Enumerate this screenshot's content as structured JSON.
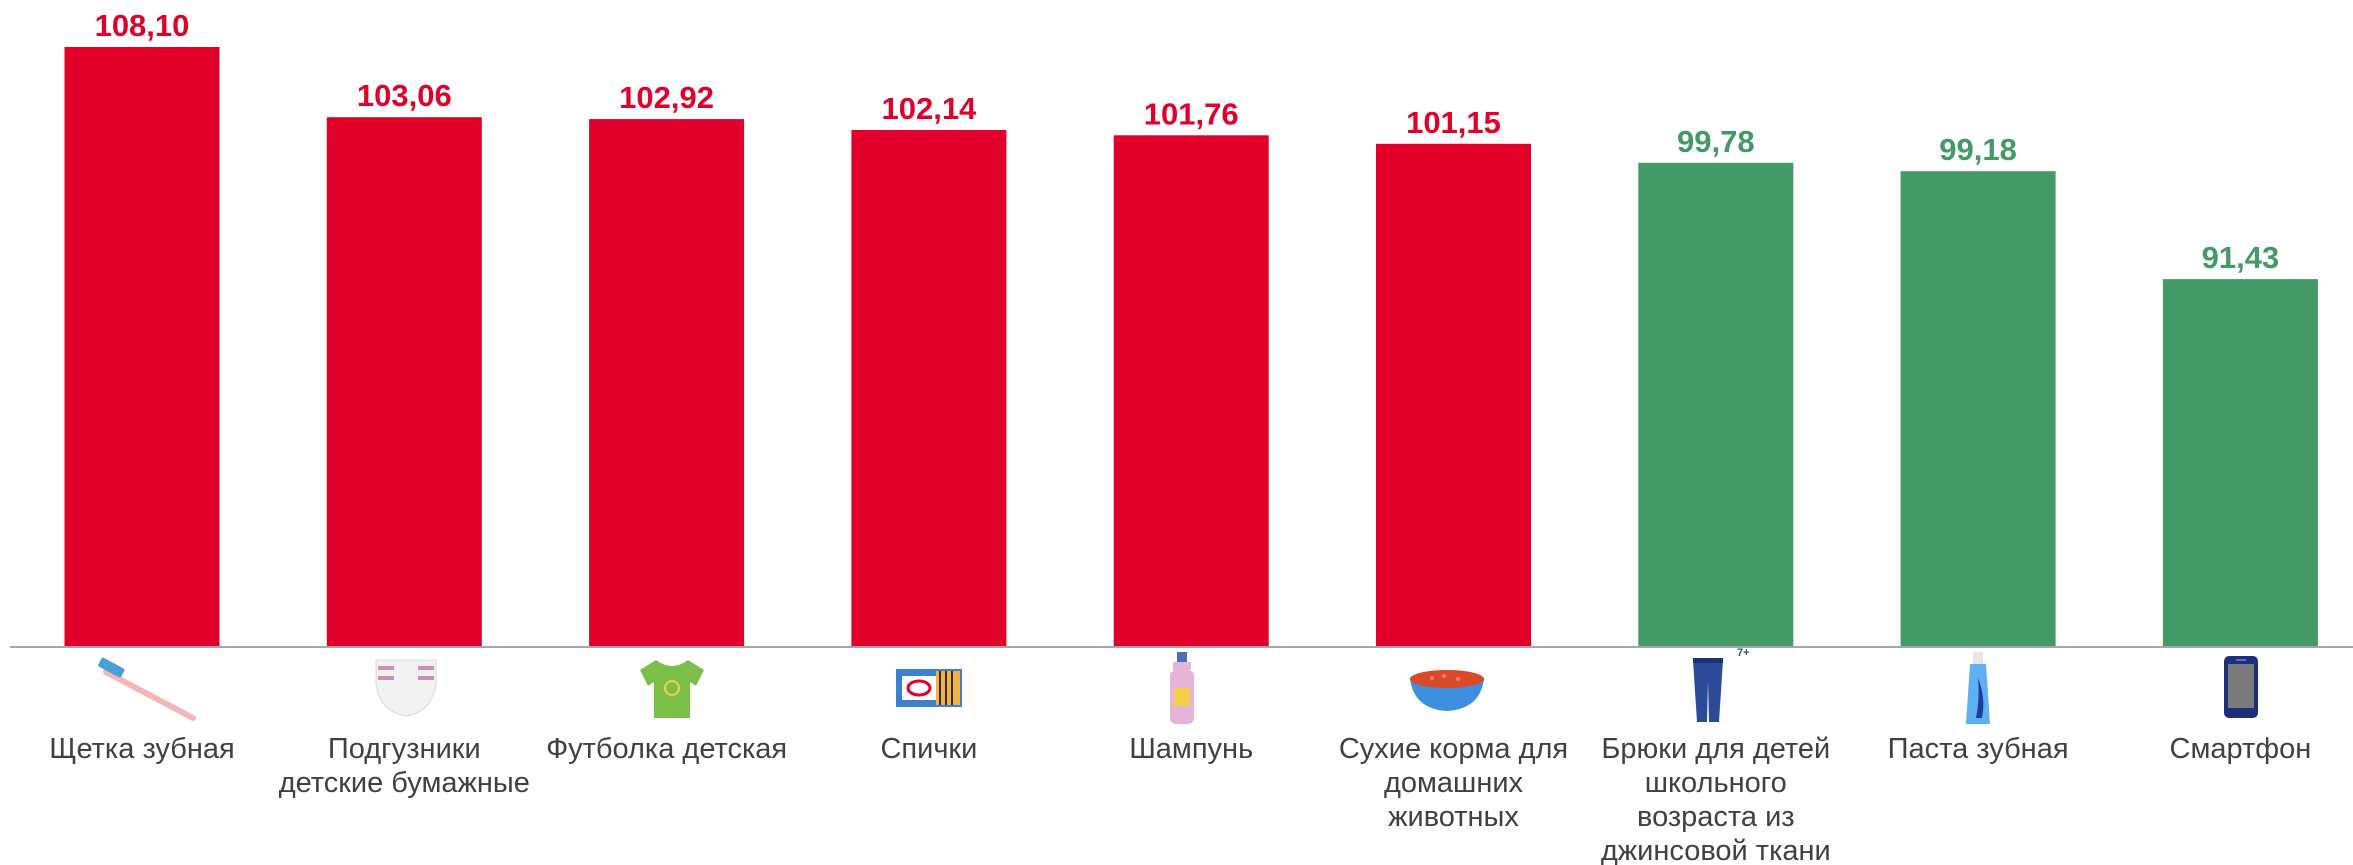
{
  "chart_data": {
    "type": "bar",
    "categories": [
      "Щетка зубная",
      "Подгузники детские бумажные",
      "Футболка детская",
      "Спички",
      "Шампунь",
      "Сухие корма для домашних животных",
      "Брюки для детей школьного возраста из джинсовой ткани",
      "Паста зубная",
      "Смартфон"
    ],
    "category_lines": [
      [
        "Щетка зубная"
      ],
      [
        "Подгузники",
        "детские бумажные"
      ],
      [
        "Футболка детская"
      ],
      [
        "Спички"
      ],
      [
        "Шампунь"
      ],
      [
        "Сухие корма для",
        "домашних",
        "животных"
      ],
      [
        "Брюки для детей",
        "школьного",
        "возраста из",
        "джинсовой ткани"
      ],
      [
        "Паста зубная"
      ],
      [
        "Смартфон"
      ]
    ],
    "values": [
      108.1,
      103.06,
      102.92,
      102.14,
      101.76,
      101.15,
      99.78,
      99.18,
      91.43
    ],
    "value_labels": [
      "108,10",
      "103,06",
      "102,92",
      "102,14",
      "101,76",
      "101,15",
      "99,78",
      "99,18",
      "91,43"
    ],
    "icons": [
      "toothbrush-icon",
      "diaper-icon",
      "tshirt-icon",
      "matchbox-icon",
      "shampoo-icon",
      "pet-food-bowl-icon",
      "jeans-icon",
      "toothpaste-icon",
      "smartphone-icon"
    ],
    "icon_text": {
      "jeans": "7+"
    },
    "ylim": [
      65,
      108.1
    ],
    "grid": false,
    "colors": {
      "above_100": "#e0002a",
      "below_100": "#449a66",
      "axis": "#a6a6a6",
      "category_text": "#404040"
    }
  }
}
